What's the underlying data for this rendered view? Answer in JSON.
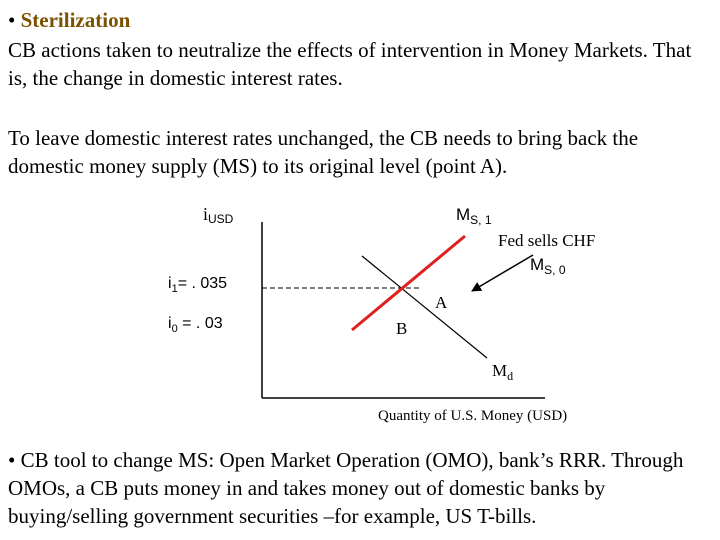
{
  "heading": {
    "bullet": "•",
    "title": "Sterilization"
  },
  "paragraph1": "CB actions taken to neutralize the effects of intervention in Money Markets. That is, the change in domestic interest rates.",
  "paragraph2": "To leave domestic interest rates unchanged, the CB needs to bring back the domestic money supply (MS) to its original level (point A).",
  "diagram": {
    "y_axis_label": {
      "main": "i",
      "sub": "USD"
    },
    "x_axis_label": "Quantity of U.S. Money (USD)",
    "i1_label": {
      "main": "i",
      "sub": "1",
      "rest": "= . 035"
    },
    "i0_label": {
      "main": "i",
      "sub": "0",
      "rest": " = . 03"
    },
    "ms1_label": {
      "main": "M",
      "sub": "S, 1"
    },
    "ms0_label": {
      "main": "M",
      "sub": "S, 0"
    },
    "md_label": {
      "main": "M",
      "sub": "d"
    },
    "annotation": "Fed sells CHF",
    "point_a": "A",
    "point_b": "B",
    "ms1_color": "#e02020"
  },
  "paragraph3": "• CB tool to change MS: Open Market Operation (OMO), bank’s RRR. Through OMOs, a CB puts money in and takes money out of domestic banks by buying/selling government securities –for example, US T-bills."
}
